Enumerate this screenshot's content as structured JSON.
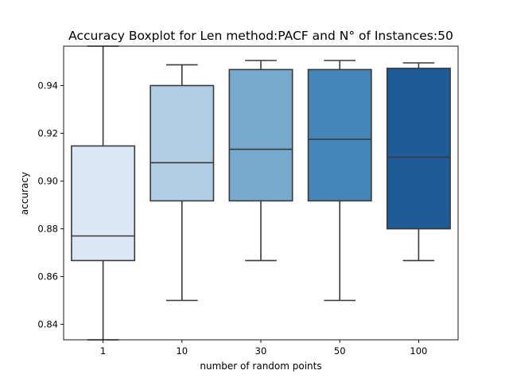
{
  "chart_data": {
    "type": "boxplot",
    "title": "Accuracy Boxplot for Len method:PACF and N° of Instances:50",
    "xlabel": "number of random points",
    "ylabel": "accuracy",
    "ylim": [
      0.8335,
      0.9565
    ],
    "y_ticks": [
      {
        "value": 0.84,
        "label": "0.84"
      },
      {
        "value": 0.86,
        "label": "0.86"
      },
      {
        "value": 0.88,
        "label": "0.88"
      },
      {
        "value": 0.9,
        "label": "0.90"
      },
      {
        "value": 0.92,
        "label": "0.92"
      },
      {
        "value": 0.94,
        "label": "0.94"
      }
    ],
    "grid": false,
    "categories": [
      "1",
      "10",
      "30",
      "50",
      "100"
    ],
    "boxes": [
      {
        "category": "1",
        "whisker_low": 0.8335,
        "q1": 0.8667,
        "median": 0.877,
        "q3": 0.9147,
        "whisker_high": 0.9565,
        "color": "#dbe7f4"
      },
      {
        "category": "10",
        "whisker_low": 0.85,
        "q1": 0.8917,
        "median": 0.9077,
        "q3": 0.94,
        "whisker_high": 0.9487,
        "color": "#b2cee3"
      },
      {
        "category": "30",
        "whisker_low": 0.8667,
        "q1": 0.8917,
        "median": 0.9133,
        "q3": 0.9467,
        "whisker_high": 0.9505,
        "color": "#78aacd"
      },
      {
        "category": "50",
        "whisker_low": 0.85,
        "q1": 0.8917,
        "median": 0.9175,
        "q3": 0.9467,
        "whisker_high": 0.9505,
        "color": "#4685b8"
      },
      {
        "category": "100",
        "whisker_low": 0.8667,
        "q1": 0.88,
        "median": 0.91,
        "q3": 0.9472,
        "whisker_high": 0.9495,
        "color": "#1f5b96"
      }
    ],
    "colors": {
      "line": "#3a3a3a",
      "axis": "#000000",
      "background": "#ffffff"
    }
  }
}
